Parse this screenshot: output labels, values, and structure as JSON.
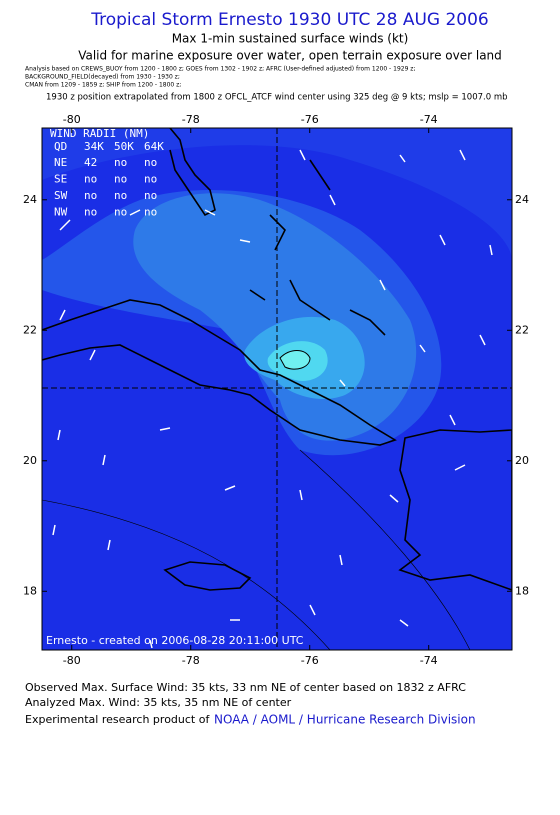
{
  "header": {
    "title": "Tropical Storm Ernesto 1930 UTC 28 AUG 2006",
    "subtitle": "Max 1-min sustained surface winds (kt)",
    "validity": "Valid for marine exposure over water, open terrain exposure over land",
    "notes": [
      "Analysis based on CREWS_BUOY from 1200 - 1800 z; GOES from 1302 - 1902 z; AFRC (User-defined adjusted) from 1200 - 1929 z;",
      "BACKGROUND_FIELD(decayed) from 1930 - 1930 z;",
      "CMAN from 1209 - 1859 z; SHIP from 1200 - 1800 z;"
    ],
    "position_note": "1930 z position extrapolated from 1800 z OFCL_ATCF wind center using 325 deg @ 9 kts; mslp = 1007.0 mb"
  },
  "map": {
    "lon_range": [
      -80.5,
      -72.6
    ],
    "lat_range": [
      17.1,
      25.1
    ],
    "xticks": [
      -80,
      -78,
      -76,
      -74
    ],
    "yticks": [
      18,
      20,
      22,
      24
    ],
    "wind_radii": {
      "title": "WIND RADII (NM)",
      "columns": [
        "QD",
        "34K",
        "50K",
        "64K"
      ],
      "rows": [
        [
          "NE",
          42,
          "no",
          "no"
        ],
        [
          "SE",
          "no",
          "no",
          "no"
        ],
        [
          "SW",
          "no",
          "no",
          "no"
        ],
        [
          "NW",
          "no",
          "no",
          "no"
        ]
      ]
    },
    "credit": "Ernesto - created on 2006-08-28 20:11:00 UTC"
  },
  "footer": {
    "observed": "Observed Max. Surface Wind: 35 kts, 33 nm NE of center based on 1832 z AFRC",
    "analyzed": "Analyzed Max. Wind: 35 kts, 35 nm NE of center",
    "product": "Experimental research product of",
    "link": "NOAA / AOML / Hurricane Research Division"
  }
}
